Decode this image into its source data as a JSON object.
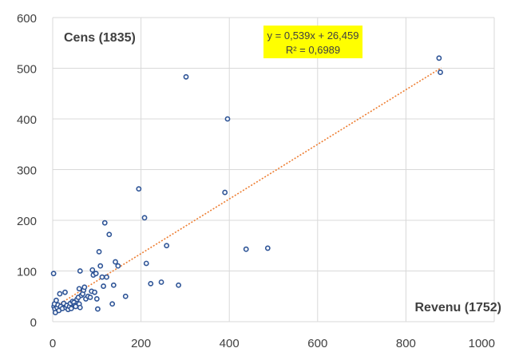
{
  "chart_data": {
    "type": "scatter",
    "title": "",
    "xlabel": "Revenu (1752)",
    "ylabel": "Cens (1835)",
    "xlim": [
      0,
      1000
    ],
    "ylim": [
      0,
      600
    ],
    "x_ticks": [
      0,
      200,
      400,
      600,
      800,
      1000
    ],
    "y_ticks": [
      0,
      100,
      200,
      300,
      400,
      500,
      600
    ],
    "grid": true,
    "legend": "none",
    "marker_color": "#2F5597",
    "trendline": {
      "type": "linear",
      "slope": 0.539,
      "intercept": 26.459,
      "equation_label": "y = 0,539x + 26,459",
      "r2_label": "R² = 0,6989",
      "color": "#ED7D31",
      "label_background": "#FFFF00"
    },
    "series": [
      {
        "points": [
          [
            2,
            95
          ],
          [
            3,
            30
          ],
          [
            4,
            35
          ],
          [
            5,
            25
          ],
          [
            6,
            18
          ],
          [
            8,
            42
          ],
          [
            10,
            28
          ],
          [
            12,
            33
          ],
          [
            14,
            22
          ],
          [
            16,
            55
          ],
          [
            18,
            30
          ],
          [
            22,
            26
          ],
          [
            25,
            36
          ],
          [
            28,
            58
          ],
          [
            30,
            28
          ],
          [
            32,
            32
          ],
          [
            35,
            24
          ],
          [
            38,
            30
          ],
          [
            40,
            36
          ],
          [
            42,
            26
          ],
          [
            45,
            40
          ],
          [
            48,
            38
          ],
          [
            50,
            32
          ],
          [
            52,
            30
          ],
          [
            55,
            44
          ],
          [
            58,
            48
          ],
          [
            60,
            35
          ],
          [
            62,
            28
          ],
          [
            60,
            65
          ],
          [
            62,
            100
          ],
          [
            65,
            52
          ],
          [
            68,
            55
          ],
          [
            70,
            62
          ],
          [
            72,
            68
          ],
          [
            75,
            45
          ],
          [
            80,
            50
          ],
          [
            85,
            48
          ],
          [
            88,
            60
          ],
          [
            90,
            102
          ],
          [
            92,
            92
          ],
          [
            95,
            58
          ],
          [
            98,
            95
          ],
          [
            100,
            45
          ],
          [
            102,
            25
          ],
          [
            105,
            138
          ],
          [
            108,
            110
          ],
          [
            112,
            88
          ],
          [
            115,
            70
          ],
          [
            118,
            195
          ],
          [
            122,
            88
          ],
          [
            128,
            172
          ],
          [
            135,
            35
          ],
          [
            138,
            72
          ],
          [
            142,
            118
          ],
          [
            148,
            110
          ],
          [
            165,
            50
          ],
          [
            195,
            262
          ],
          [
            208,
            205
          ],
          [
            212,
            115
          ],
          [
            222,
            75
          ],
          [
            246,
            78
          ],
          [
            258,
            150
          ],
          [
            285,
            72
          ],
          [
            302,
            483
          ],
          [
            390,
            255
          ],
          [
            396,
            400
          ],
          [
            438,
            143
          ],
          [
            487,
            145
          ],
          [
            875,
            520
          ],
          [
            878,
            492
          ]
        ]
      }
    ]
  }
}
